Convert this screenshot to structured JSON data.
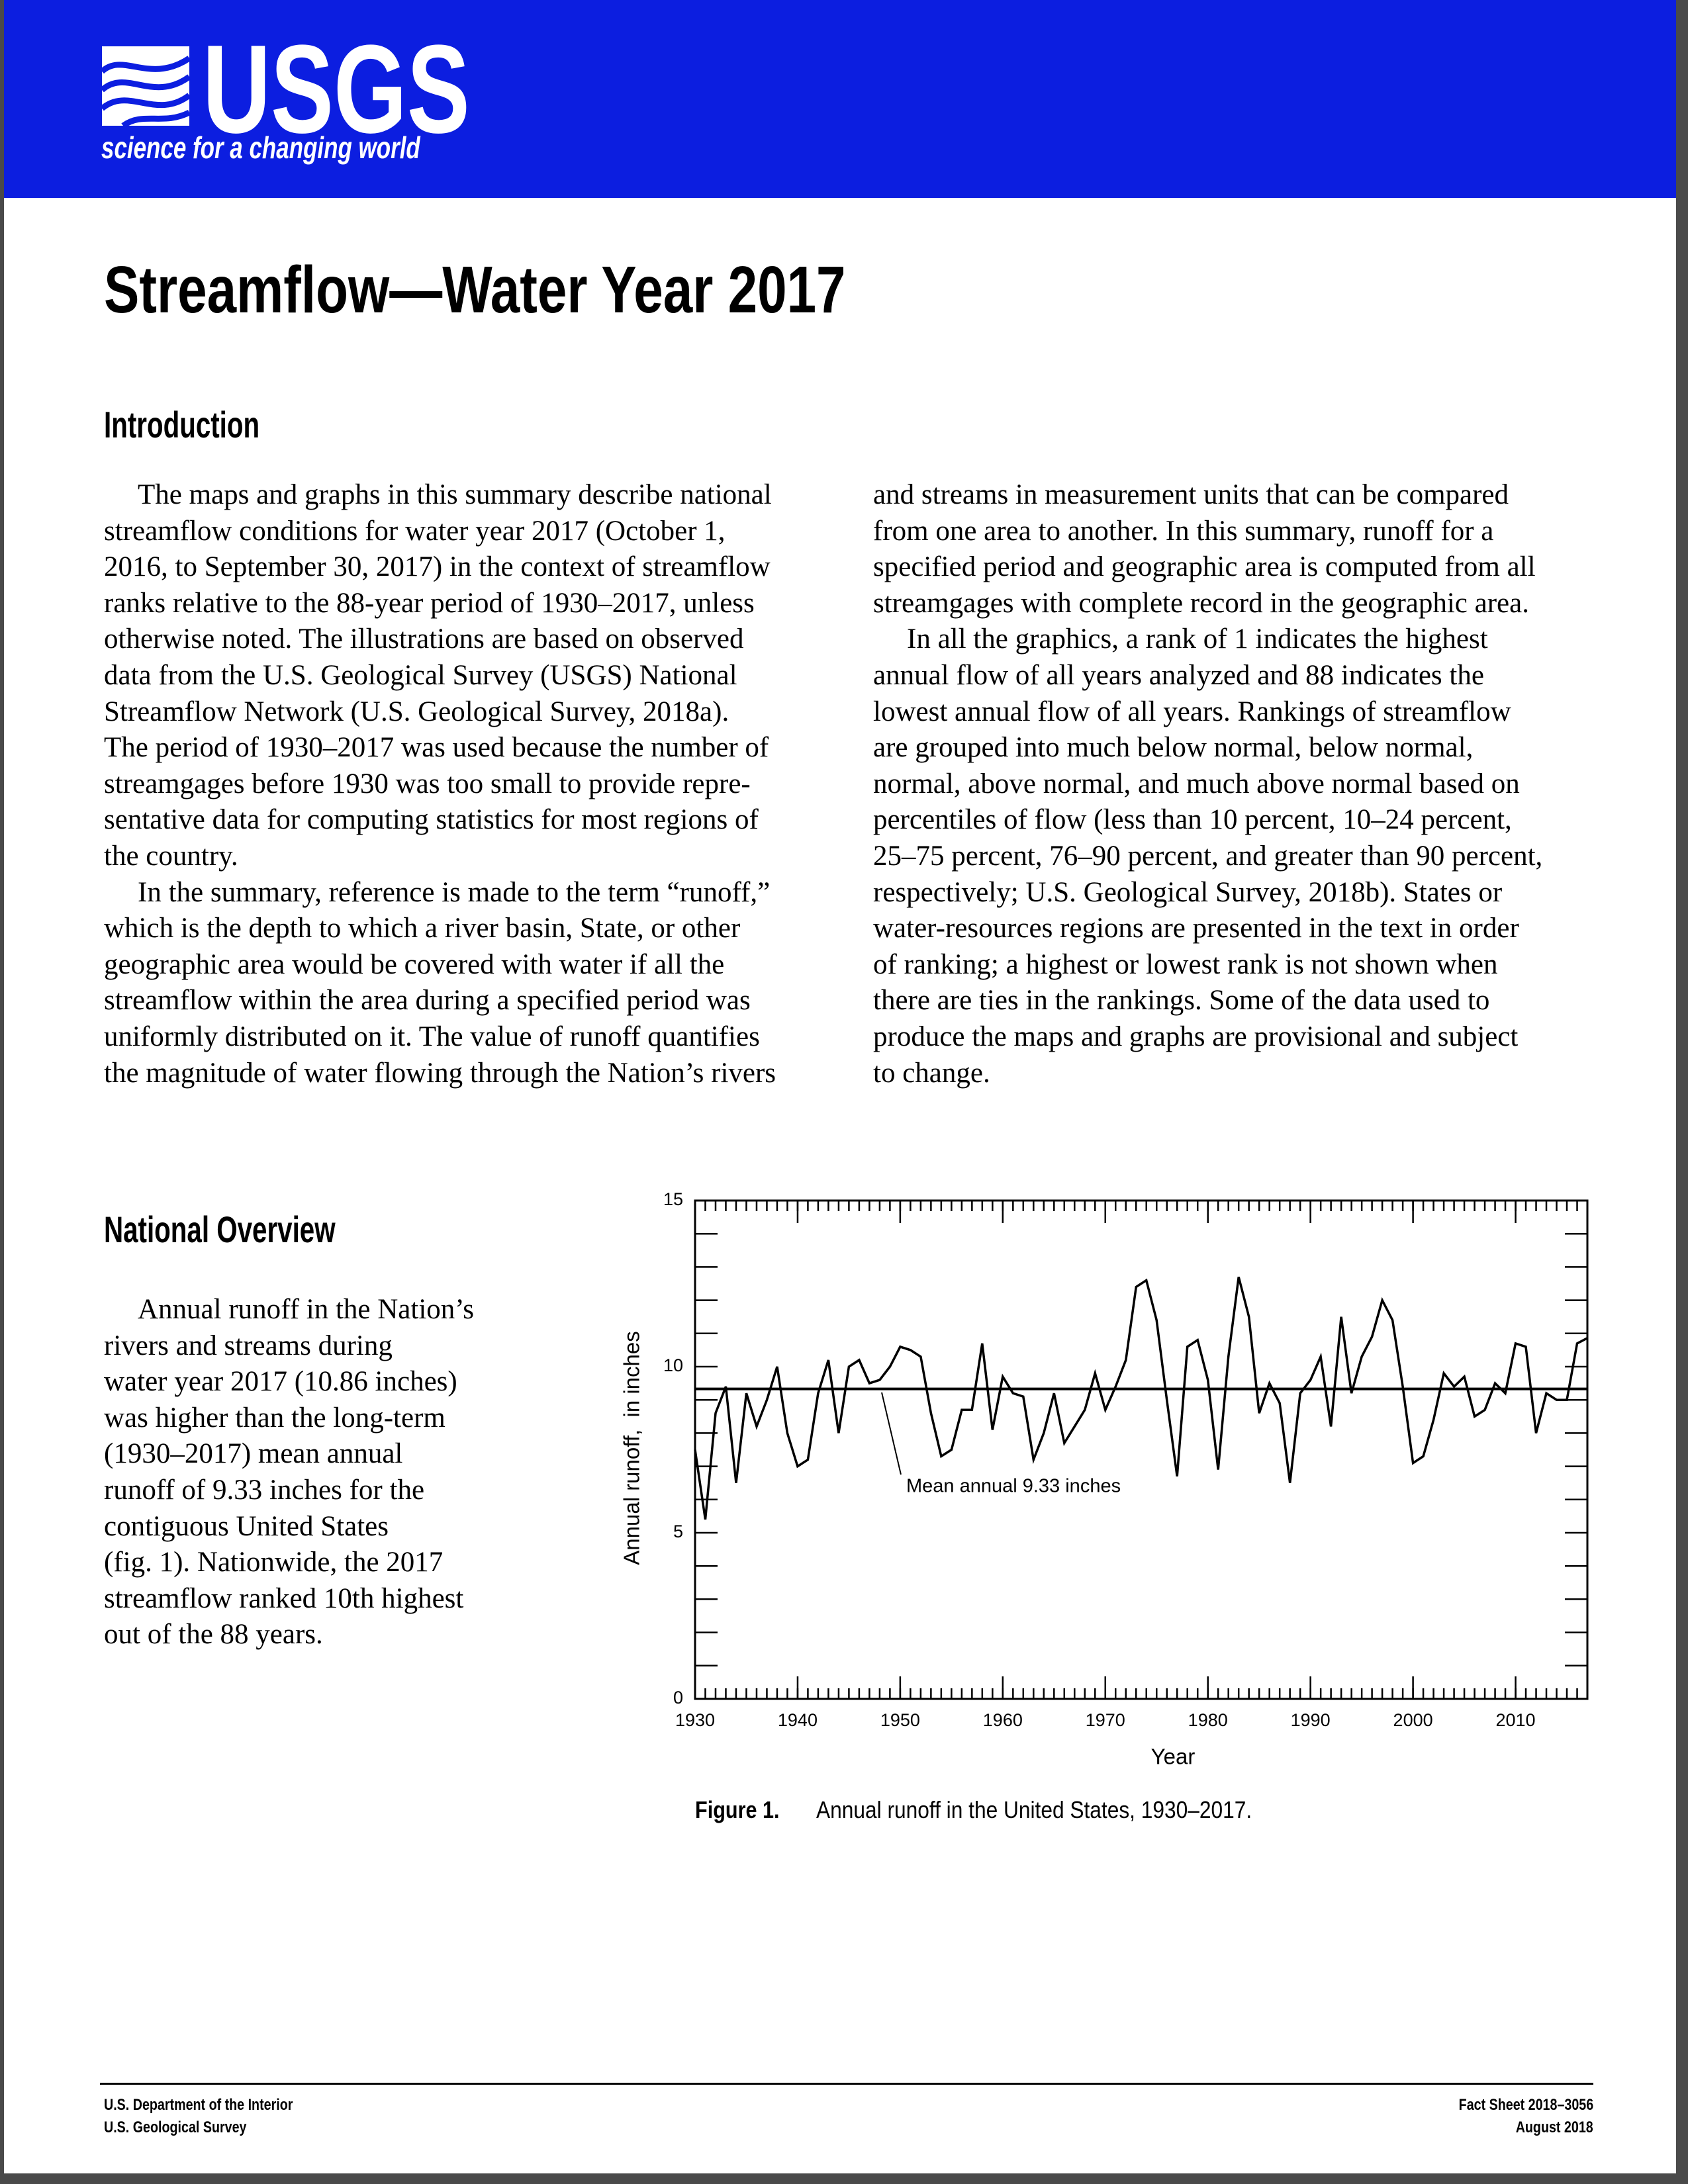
{
  "header": {
    "logo": "USGS",
    "tagline": "science for a changing world"
  },
  "title": "Streamflow—Water Year 2017",
  "introduction": {
    "heading": "Introduction",
    "left": [
      [
        "The maps and graphs in this summary describe national",
        "streamflow conditions for water year 2017 (October 1,",
        "2016, to September 30, 2017) in the context of streamflow",
        "ranks relative to the 88-year period of 1930–2017, unless",
        "otherwise noted. The illustrations are based on observed",
        "data from the U.S. Geological Survey (USGS) National",
        "Streamflow Network (U.S. Geological Survey, 2018a).",
        "The period of 1930–2017 was used because the number of",
        "streamgages before 1930 was too small to provide repre-",
        "sentative data for computing statistics for most regions of",
        "the country."
      ],
      [
        "In the summary, reference is made to the term “runoff,”",
        "which is the depth to which a river basin, State, or other",
        "geographic area would be covered with water if all the",
        "streamflow within the area during a specified period was",
        "uniformly distributed on it. The value of runoff quantifies",
        "the magnitude of water flowing through the Nation’s rivers"
      ]
    ],
    "right_continued": [
      "and streams in measurement units that can be compared",
      "from one area to another. In this summary, runoff for a",
      "specified period and geographic area is computed from all",
      "streamgages with complete record in the geographic area."
    ],
    "right": [
      [
        "In all the graphics, a rank of 1 indicates the highest",
        "annual flow of all years analyzed and 88 indicates the",
        "lowest annual flow of all years. Rankings of streamflow",
        "are grouped into much below normal, below normal,",
        "normal, above normal, and much above normal based on",
        "percentiles of flow (less than 10 percent, 10–24 percent,",
        "25–75 percent, 76–90 percent, and greater than 90 percent,",
        "respectively; U.S. Geological Survey, 2018b). States or",
        "water-resources regions are presented in the text in order",
        "of ranking; a highest or lowest rank is not shown when",
        "there are ties in the rankings. Some of the data used to",
        "produce the maps and graphs are provisional and subject",
        "to change."
      ]
    ]
  },
  "national_overview": {
    "heading": "National Overview",
    "paragraphs": [
      [
        "Annual runoff in the Nation’s",
        "rivers and streams during",
        "water year 2017 (10.86 inches)",
        "was higher than the long-term",
        "(1930–2017) mean annual",
        "runoff of 9.33 inches for the",
        "contiguous United States",
        "(fig. 1). Nationwide, the 2017",
        "streamflow ranked 10th highest",
        "out of the 88 years."
      ]
    ]
  },
  "chart_data": {
    "type": "line",
    "x_label": "Year",
    "y_label": "Annual runoff,  in inches",
    "x": [
      1930,
      1931,
      1932,
      1933,
      1934,
      1935,
      1936,
      1937,
      1938,
      1939,
      1940,
      1941,
      1942,
      1943,
      1944,
      1945,
      1946,
      1947,
      1948,
      1949,
      1950,
      1951,
      1952,
      1953,
      1954,
      1955,
      1956,
      1957,
      1958,
      1959,
      1960,
      1961,
      1962,
      1963,
      1964,
      1965,
      1966,
      1967,
      1968,
      1969,
      1970,
      1971,
      1972,
      1973,
      1974,
      1975,
      1976,
      1977,
      1978,
      1979,
      1980,
      1981,
      1982,
      1983,
      1984,
      1985,
      1986,
      1987,
      1988,
      1989,
      1990,
      1991,
      1992,
      1993,
      1994,
      1995,
      1996,
      1997,
      1998,
      1999,
      2000,
      2001,
      2002,
      2003,
      2004,
      2005,
      2006,
      2007,
      2008,
      2009,
      2010,
      2011,
      2012,
      2013,
      2014,
      2015,
      2016,
      2017
    ],
    "values": [
      7.5,
      5.4,
      8.6,
      9.4,
      6.5,
      9.2,
      8.2,
      9.0,
      10.0,
      8.0,
      7.0,
      7.2,
      9.2,
      10.2,
      8.0,
      10.0,
      10.2,
      9.5,
      9.6,
      10.0,
      10.6,
      10.5,
      10.3,
      8.6,
      7.3,
      7.5,
      8.7,
      8.7,
      10.7,
      8.1,
      9.7,
      9.2,
      9.1,
      7.2,
      8.0,
      9.2,
      7.7,
      8.2,
      8.7,
      9.8,
      8.7,
      9.4,
      10.2,
      12.4,
      12.6,
      11.4,
      9.0,
      6.7,
      10.6,
      10.8,
      9.6,
      6.9,
      10.3,
      12.7,
      11.5,
      8.6,
      9.5,
      8.9,
      6.5,
      9.2,
      9.6,
      10.3,
      8.2,
      11.5,
      9.2,
      10.3,
      10.9,
      12.0,
      11.4,
      9.4,
      7.1,
      7.3,
      8.4,
      9.8,
      9.4,
      9.7,
      8.5,
      8.7,
      9.5,
      9.2,
      10.7,
      10.6,
      8.0,
      9.2,
      9.0,
      9.0,
      10.7,
      10.86
    ],
    "color": "#000000",
    "xlim": [
      1930,
      2017
    ],
    "ylim": [
      0,
      15
    ],
    "xticks": [
      1930,
      1940,
      1950,
      1960,
      1970,
      1980,
      1990,
      2000,
      2010
    ],
    "yticks": [
      0,
      5,
      10,
      15
    ],
    "yminorticks": [
      1,
      2,
      3,
      4,
      6,
      7,
      8,
      9,
      11,
      12,
      13,
      14
    ],
    "mean": 9.33,
    "annotation": "Mean annual 9.33 inches"
  },
  "figure": {
    "label": "Figure 1.",
    "caption": "Annual runoff in the United States, 1930–2017."
  },
  "footer": {
    "left": [
      "U.S. Department of the Interior",
      "U.S. Geological Survey"
    ],
    "right": [
      "Fact Sheet 2018–3056",
      "August 2018"
    ]
  }
}
